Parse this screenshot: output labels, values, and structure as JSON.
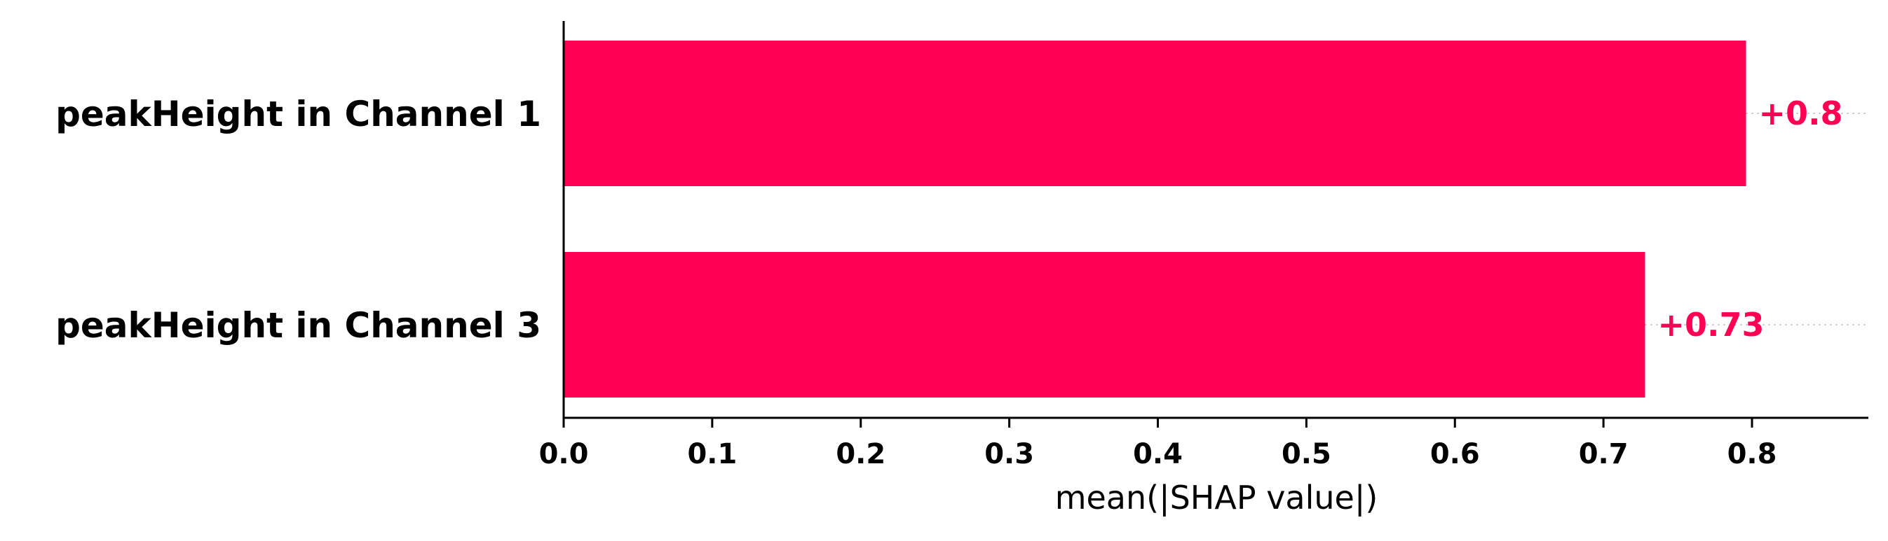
{
  "chart_data": {
    "type": "bar",
    "orientation": "horizontal",
    "categories": [
      "peakHeight in Channel 1",
      "peakHeight in Channel 3"
    ],
    "values": [
      0.796,
      0.728
    ],
    "value_labels": [
      "+0.8",
      "+0.73"
    ],
    "xlabel": "mean(|SHAP value|)",
    "ylabel": "",
    "xlim": [
      0,
      0.88
    ],
    "xticks": [
      0.0,
      0.1,
      0.2,
      0.3,
      0.4,
      0.5,
      0.6,
      0.7,
      0.8
    ],
    "xtick_labels": [
      "0.0",
      "0.1",
      "0.2",
      "0.3",
      "0.4",
      "0.5",
      "0.6",
      "0.7",
      "0.8"
    ],
    "grid": false,
    "bar_color": "#ff0052",
    "value_label_color": "#ff0052",
    "guide_line_color": "#bbbbbb"
  }
}
